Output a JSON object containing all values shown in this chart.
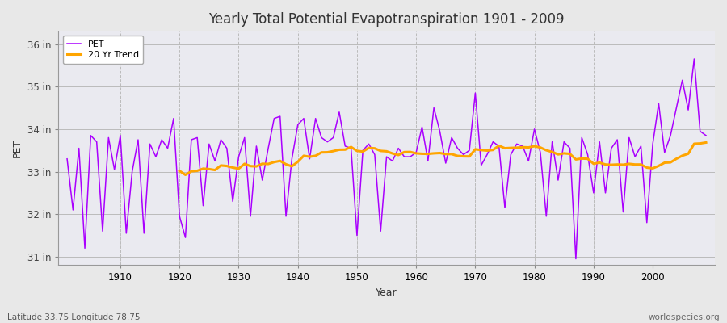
{
  "title": "Yearly Total Potential Evapotranspiration 1901 - 2009",
  "xlabel": "Year",
  "ylabel": "PET",
  "subtitle_left": "Latitude 33.75 Longitude 78.75",
  "subtitle_right": "worldspecies.org",
  "pet_color": "#AA00FF",
  "trend_color": "#FFA500",
  "bg_color": "#E8E8E8",
  "plot_bg_color": "#EAEAF0",
  "grid_color": "#BBBBBB",
  "ylim_min": 30.8,
  "ylim_max": 36.3,
  "yticks": [
    31,
    32,
    33,
    34,
    35,
    36
  ],
  "ytick_labels": [
    "31 in",
    "32 in",
    "33 in",
    "34 in",
    "35 in",
    "36 in"
  ],
  "years": [
    1901,
    1902,
    1903,
    1904,
    1905,
    1906,
    1907,
    1908,
    1909,
    1910,
    1911,
    1912,
    1913,
    1914,
    1915,
    1916,
    1917,
    1918,
    1919,
    1920,
    1921,
    1922,
    1923,
    1924,
    1925,
    1926,
    1927,
    1928,
    1929,
    1930,
    1931,
    1932,
    1933,
    1934,
    1935,
    1936,
    1937,
    1938,
    1939,
    1940,
    1941,
    1942,
    1943,
    1944,
    1945,
    1946,
    1947,
    1948,
    1949,
    1950,
    1951,
    1952,
    1953,
    1954,
    1955,
    1956,
    1957,
    1958,
    1959,
    1960,
    1961,
    1962,
    1963,
    1964,
    1965,
    1966,
    1967,
    1968,
    1969,
    1970,
    1971,
    1972,
    1973,
    1974,
    1975,
    1976,
    1977,
    1978,
    1979,
    1980,
    1981,
    1982,
    1983,
    1984,
    1985,
    1986,
    1987,
    1988,
    1989,
    1990,
    1991,
    1992,
    1993,
    1994,
    1995,
    1996,
    1997,
    1998,
    1999,
    2000,
    2001,
    2002,
    2003,
    2004,
    2005,
    2006,
    2007,
    2008,
    2009
  ],
  "pet_values": [
    33.3,
    32.1,
    33.55,
    31.2,
    33.85,
    33.7,
    31.6,
    33.8,
    33.05,
    33.85,
    31.55,
    33.0,
    33.75,
    31.55,
    33.65,
    33.35,
    33.75,
    33.55,
    34.25,
    31.95,
    31.45,
    33.75,
    33.8,
    32.2,
    33.65,
    33.25,
    33.75,
    33.55,
    32.3,
    33.35,
    33.8,
    31.95,
    33.6,
    32.8,
    33.55,
    34.25,
    34.3,
    31.95,
    33.3,
    34.1,
    34.25,
    33.3,
    34.25,
    33.8,
    33.7,
    33.8,
    34.4,
    33.6,
    33.55,
    31.5,
    33.5,
    33.65,
    33.4,
    31.6,
    33.35,
    33.25,
    33.55,
    33.35,
    33.35,
    33.45,
    34.05,
    33.25,
    34.5,
    33.95,
    33.2,
    33.8,
    33.55,
    33.4,
    33.5,
    34.85,
    33.15,
    33.4,
    33.7,
    33.6,
    32.15,
    33.4,
    33.65,
    33.6,
    33.25,
    34.0,
    33.45,
    31.95,
    33.7,
    32.8,
    33.7,
    33.55,
    30.95,
    33.8,
    33.4,
    32.5,
    33.7,
    32.5,
    33.55,
    33.75,
    32.05,
    33.8,
    33.35,
    33.6,
    31.8,
    33.65,
    34.6,
    33.45,
    33.85,
    34.5,
    35.15,
    34.45,
    35.65,
    33.95,
    33.85
  ],
  "trend_window": 20,
  "legend_pet_label": "PET",
  "legend_trend_label": "20 Yr Trend"
}
